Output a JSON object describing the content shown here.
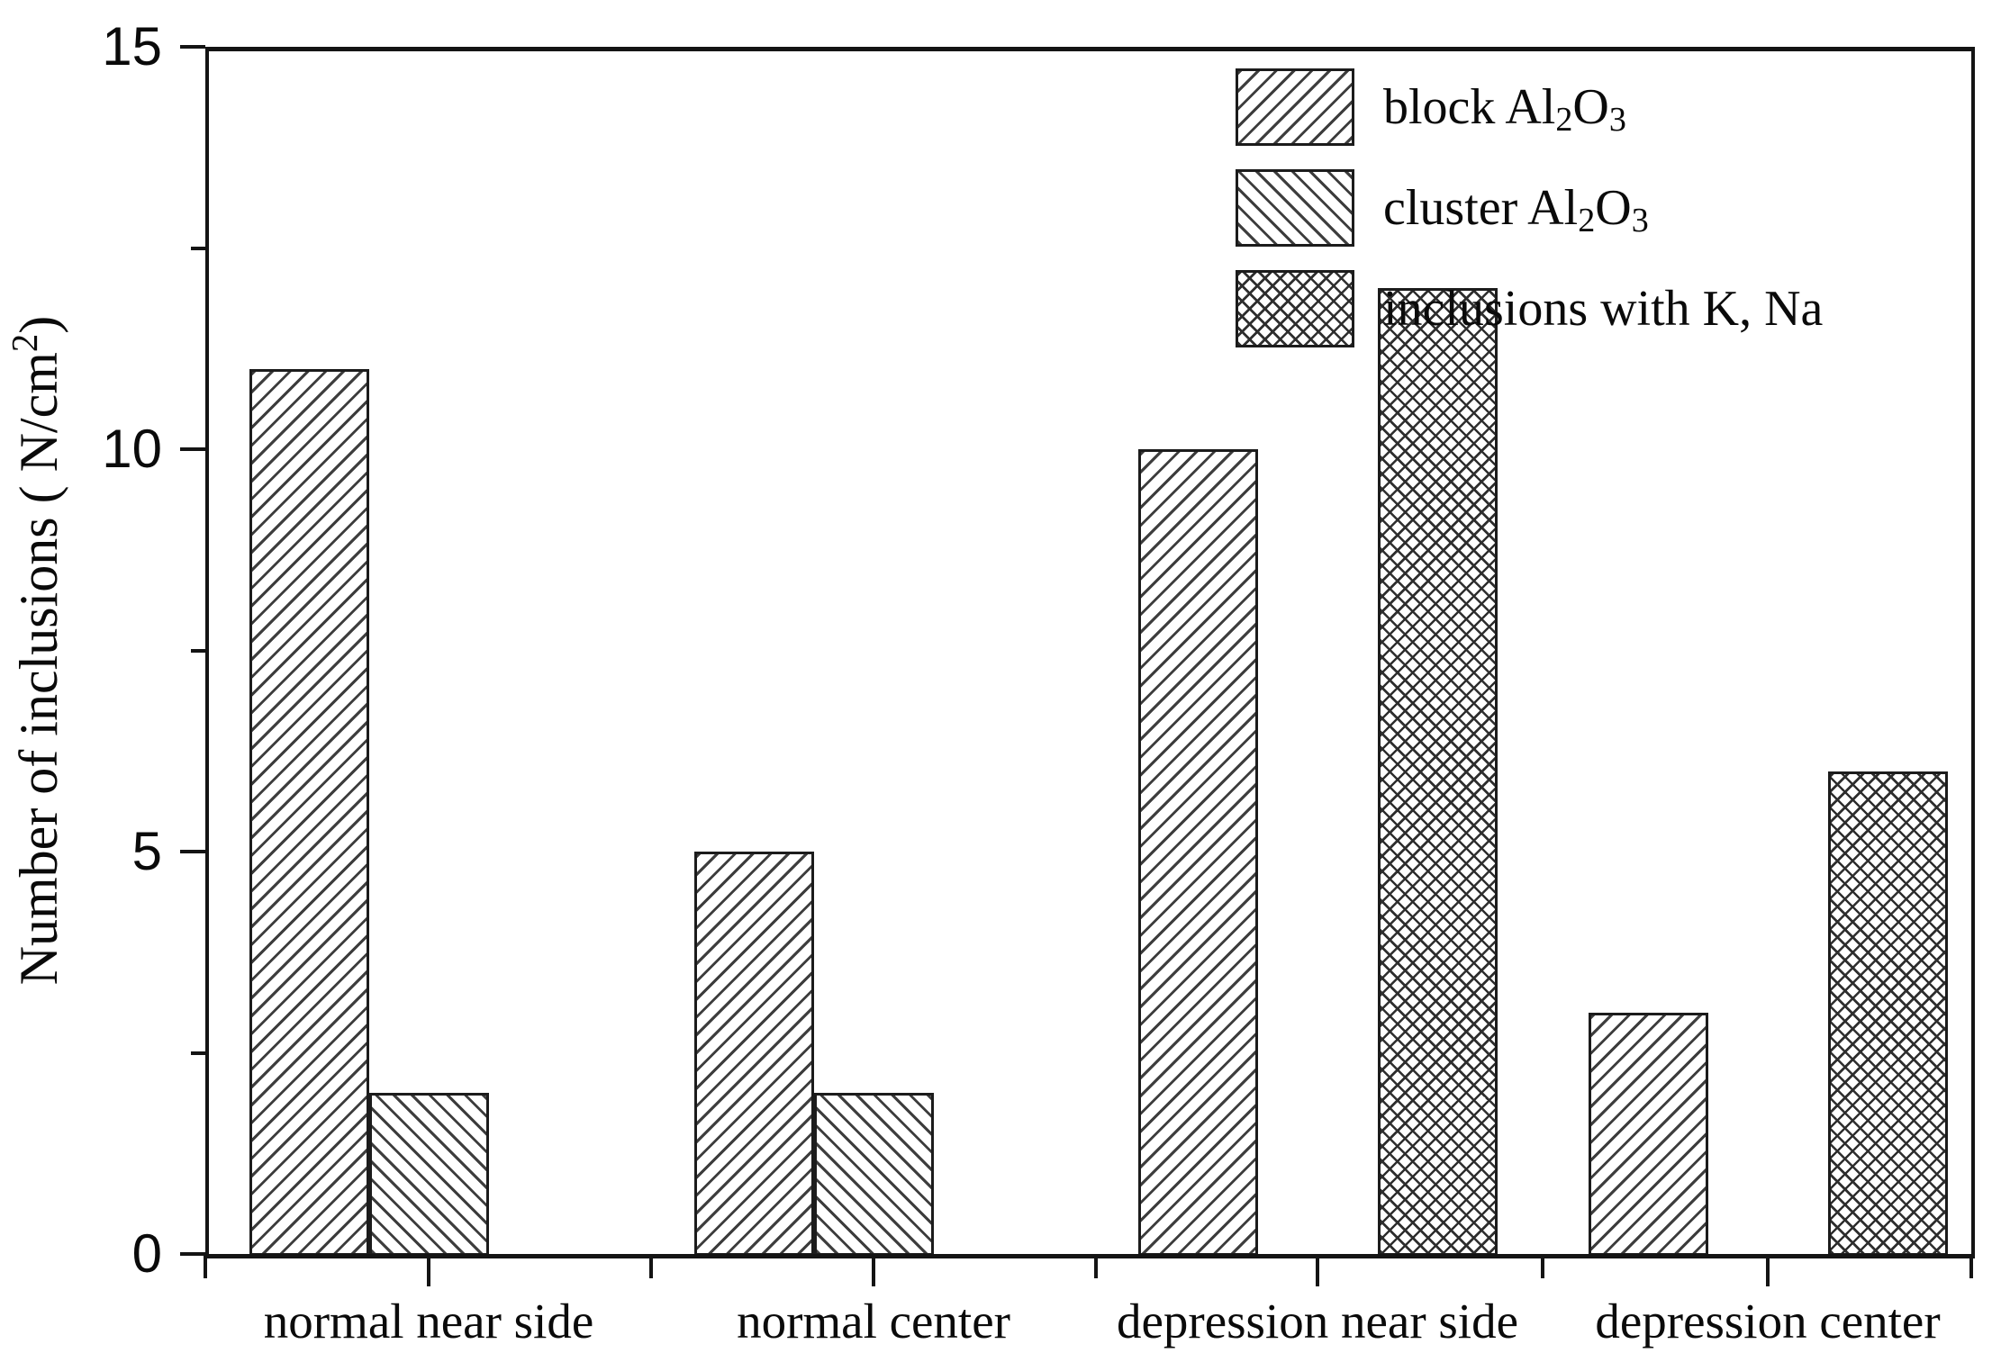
{
  "chart_data": {
    "type": "bar",
    "title": "",
    "categories": [
      "normal near side",
      "normal center",
      "depression near side",
      "depression center"
    ],
    "series": [
      {
        "name": "block Al₂O₃",
        "hatch": "diagonal-forward",
        "values": [
          11,
          5,
          10,
          3
        ]
      },
      {
        "name": "cluster Al₂O₃",
        "hatch": "diagonal-backward",
        "values": [
          2,
          2,
          0,
          0
        ]
      },
      {
        "name": "inclusions with K, Na",
        "hatch": "crosshatch",
        "values": [
          0,
          0,
          12,
          6
        ]
      }
    ],
    "xlabel": "",
    "ylabel": "Number of inclusions ( N/cm²)",
    "ylim": [
      0,
      15
    ],
    "yticks_major": [
      0,
      5,
      10,
      15
    ],
    "yticks_minor": [
      2.5,
      7.5,
      12.5
    ],
    "ytick_labels": [
      "0",
      "5",
      "10",
      "15"
    ],
    "legend_position": "top-right",
    "grid": false,
    "axis_color": "#141414",
    "bar_outline_color": "#1c1c1c",
    "hatch_color": "#3d3d3d",
    "background_color": "#ffffff"
  }
}
